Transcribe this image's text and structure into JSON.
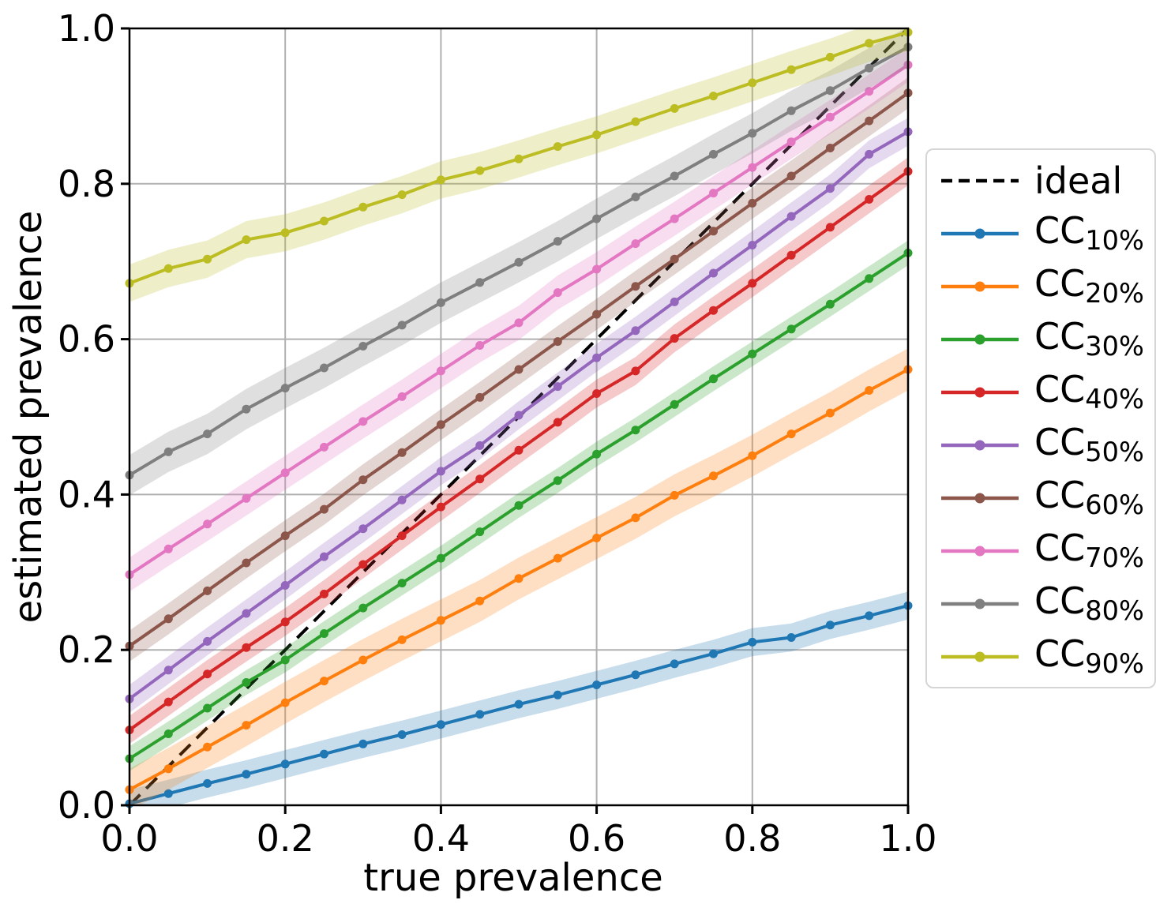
{
  "chart_data": {
    "type": "line",
    "title": "",
    "xlabel": "true prevalence",
    "ylabel": "estimated prevalence",
    "xlim": [
      0,
      1
    ],
    "ylim": [
      0,
      1
    ],
    "xticks": [
      0.0,
      0.2,
      0.4,
      0.6,
      0.8,
      1.0
    ],
    "yticks": [
      0.0,
      0.2,
      0.4,
      0.6,
      0.8,
      1.0
    ],
    "grid": true,
    "grid_color": "#b0b0b0",
    "legend_position": "right-outside",
    "x": [
      0,
      0.05,
      0.1,
      0.15,
      0.2,
      0.25,
      0.3,
      0.35,
      0.4,
      0.45,
      0.5,
      0.55,
      0.6,
      0.65,
      0.7,
      0.75,
      0.8,
      0.85,
      0.9,
      0.95,
      1
    ],
    "reference_line": {
      "label": "ideal",
      "color": "#000000",
      "dashed": true,
      "from": [
        0,
        0
      ],
      "to": [
        1,
        1
      ]
    },
    "series": [
      {
        "label": "CC",
        "sub": "10%",
        "color": "#1f77b4",
        "band_halfwidth": 0.018,
        "values": [
          0.002,
          0.015,
          0.028,
          0.04,
          0.053,
          0.066,
          0.079,
          0.091,
          0.104,
          0.117,
          0.13,
          0.142,
          0.155,
          0.168,
          0.182,
          0.195,
          0.21,
          0.216,
          0.232,
          0.244,
          0.257
        ]
      },
      {
        "label": "CC",
        "sub": "20%",
        "color": "#ff7f0e",
        "band_halfwidth": 0.027,
        "values": [
          0.02,
          0.047,
          0.075,
          0.103,
          0.132,
          0.16,
          0.187,
          0.213,
          0.238,
          0.263,
          0.292,
          0.318,
          0.344,
          0.37,
          0.399,
          0.424,
          0.45,
          0.478,
          0.505,
          0.534,
          0.561
        ]
      },
      {
        "label": "CC",
        "sub": "30%",
        "color": "#2ca02c",
        "band_halfwidth": 0.016,
        "values": [
          0.06,
          0.092,
          0.125,
          0.158,
          0.187,
          0.221,
          0.254,
          0.286,
          0.318,
          0.352,
          0.386,
          0.418,
          0.452,
          0.483,
          0.516,
          0.549,
          0.581,
          0.613,
          0.645,
          0.678,
          0.711
        ]
      },
      {
        "label": "CC",
        "sub": "40%",
        "color": "#d62728",
        "band_halfwidth": 0.018,
        "values": [
          0.097,
          0.133,
          0.169,
          0.203,
          0.236,
          0.272,
          0.31,
          0.347,
          0.384,
          0.42,
          0.457,
          0.493,
          0.53,
          0.559,
          0.601,
          0.637,
          0.672,
          0.708,
          0.744,
          0.78,
          0.816
        ]
      },
      {
        "label": "CC",
        "sub": "50%",
        "color": "#9467bd",
        "band_halfwidth": 0.018,
        "values": [
          0.137,
          0.174,
          0.211,
          0.247,
          0.283,
          0.32,
          0.356,
          0.393,
          0.43,
          0.463,
          0.502,
          0.539,
          0.576,
          0.611,
          0.648,
          0.685,
          0.721,
          0.758,
          0.794,
          0.838,
          0.867
        ]
      },
      {
        "label": "CC",
        "sub": "60%",
        "color": "#8c564b",
        "band_halfwidth": 0.02,
        "values": [
          0.205,
          0.24,
          0.276,
          0.312,
          0.347,
          0.381,
          0.419,
          0.454,
          0.49,
          0.525,
          0.561,
          0.597,
          0.632,
          0.668,
          0.703,
          0.739,
          0.775,
          0.81,
          0.846,
          0.881,
          0.917
        ]
      },
      {
        "label": "CC",
        "sub": "70%",
        "color": "#e377c2",
        "band_halfwidth": 0.022,
        "values": [
          0.297,
          0.33,
          0.362,
          0.395,
          0.428,
          0.461,
          0.494,
          0.526,
          0.559,
          0.592,
          0.621,
          0.66,
          0.69,
          0.723,
          0.755,
          0.788,
          0.821,
          0.854,
          0.886,
          0.919,
          0.953
        ]
      },
      {
        "label": "CC",
        "sub": "80%",
        "color": "#7f7f7f",
        "band_halfwidth": 0.026,
        "values": [
          0.425,
          0.455,
          0.478,
          0.51,
          0.537,
          0.563,
          0.591,
          0.618,
          0.647,
          0.673,
          0.699,
          0.726,
          0.755,
          0.783,
          0.81,
          0.838,
          0.865,
          0.894,
          0.92,
          0.949,
          0.976
        ]
      },
      {
        "label": "CC",
        "sub": "90%",
        "color": "#bcbd22",
        "band_halfwidth": 0.024,
        "values": [
          0.672,
          0.691,
          0.703,
          0.728,
          0.737,
          0.752,
          0.77,
          0.786,
          0.805,
          0.817,
          0.832,
          0.848,
          0.863,
          0.88,
          0.897,
          0.913,
          0.93,
          0.947,
          0.963,
          0.981,
          0.995
        ]
      }
    ],
    "band_alpha": 0.25
  }
}
